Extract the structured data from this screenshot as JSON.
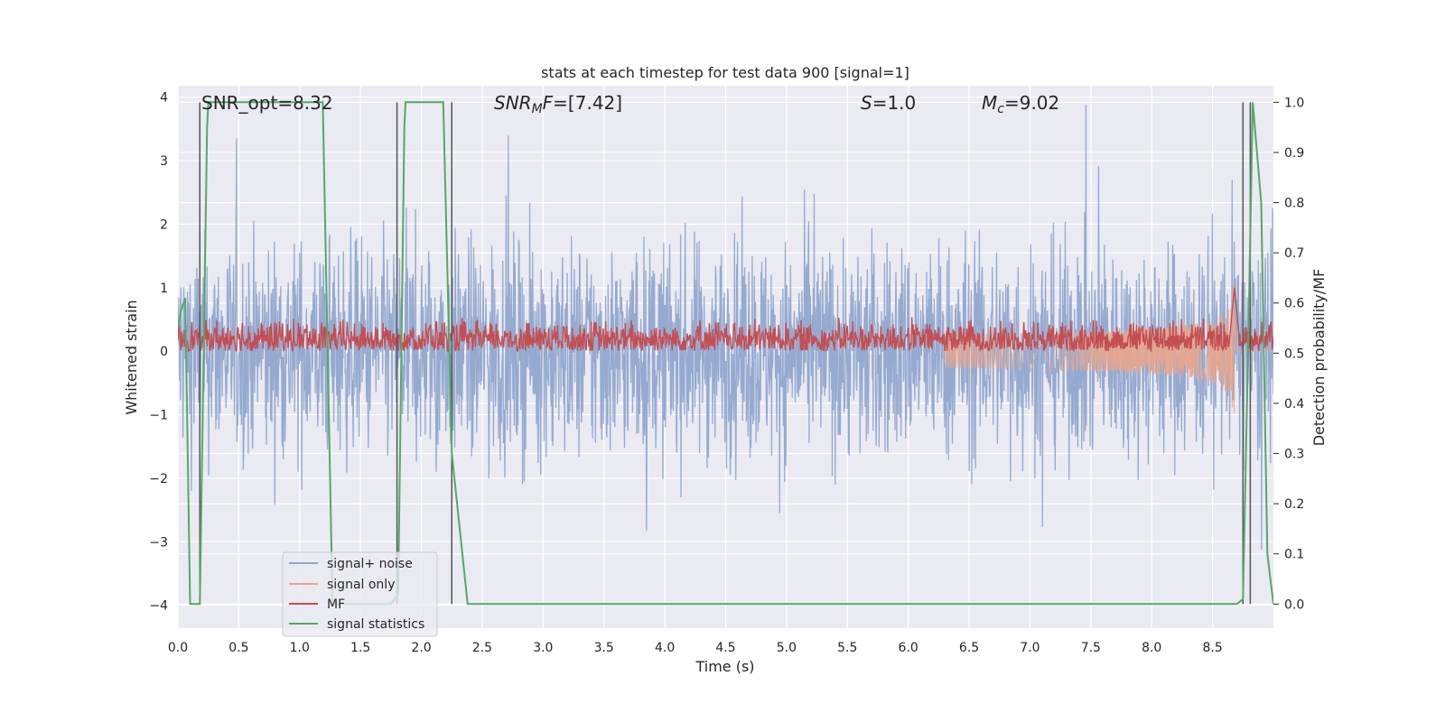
{
  "chart_data": {
    "type": "line",
    "title": "stats at each timestep for test data 900 [signal=1]",
    "xlabel": "Time (s)",
    "ylabel": "Whitened strain",
    "y2label": "Detection probability/MF",
    "xlim": [
      0.0,
      9.0
    ],
    "ylim": [
      -4.36,
      4.18
    ],
    "y2lim": [
      -0.048,
      1.033
    ],
    "x_ticks": [
      "0.0",
      "0.5",
      "1.0",
      "1.5",
      "2.0",
      "2.5",
      "3.0",
      "3.5",
      "4.0",
      "4.5",
      "5.0",
      "5.5",
      "6.0",
      "6.5",
      "7.0",
      "7.5",
      "8.0",
      "8.5"
    ],
    "y_ticks": [
      "−4",
      "−3",
      "−2",
      "−1",
      "0",
      "1",
      "2",
      "3",
      "4"
    ],
    "y2_ticks": [
      "0.0",
      "0.1",
      "0.2",
      "0.3",
      "0.4",
      "0.5",
      "0.6",
      "0.7",
      "0.8",
      "0.9",
      "1.0"
    ],
    "grid": true,
    "legend_position": "lower-left",
    "annotations": [
      {
        "text": "SNR_opt=8.32"
      },
      {
        "text": "SNR_MF=[7.42]"
      },
      {
        "text": "S=1.0"
      },
      {
        "text": "M_c=9.02"
      }
    ],
    "series": [
      {
        "name": "signal+ noise",
        "color": "#91a6cd",
        "axis": "left",
        "style": "dense noise",
        "envelope_max": [
          3.7,
          -4.0
        ]
      },
      {
        "name": "signal only",
        "color": "#e8a58c",
        "axis": "left",
        "style": "chirp",
        "onset": 6.3,
        "peak_time": 8.68,
        "peak_amplitude": 1.3
      },
      {
        "name": "MF",
        "color": "#c44e52",
        "axis": "left",
        "style": "noise band",
        "range": [
          0.0,
          0.55
        ],
        "peak_time": 8.68,
        "peak_value": 1.0
      },
      {
        "name": "signal statistics",
        "color": "#55a868",
        "axis": "right",
        "x": [
          0.0,
          0.02,
          0.06,
          0.1,
          0.12,
          0.18,
          0.24,
          0.25,
          0.5,
          0.8,
          1.19,
          1.27,
          1.6,
          1.75,
          1.81,
          1.86,
          1.87,
          2.0,
          2.18,
          2.25,
          2.38,
          3.0,
          5.0,
          7.0,
          8.5,
          8.7,
          8.75,
          8.8,
          8.83,
          8.9,
          8.95,
          9.0
        ],
        "y": [
          0.55,
          0.58,
          0.61,
          0.0,
          0.0,
          0.0,
          0.95,
          1.0,
          1.0,
          1.0,
          1.0,
          0.0,
          0.0,
          0.0,
          0.02,
          0.95,
          1.0,
          1.0,
          1.0,
          0.3,
          0.0,
          0.0,
          0.0,
          0.0,
          0.0,
          0.0,
          0.01,
          0.6,
          1.0,
          0.8,
          0.1,
          0.0
        ]
      }
    ],
    "vertical_lines": [
      0.18,
      1.8,
      2.25,
      8.75,
      8.81
    ]
  }
}
